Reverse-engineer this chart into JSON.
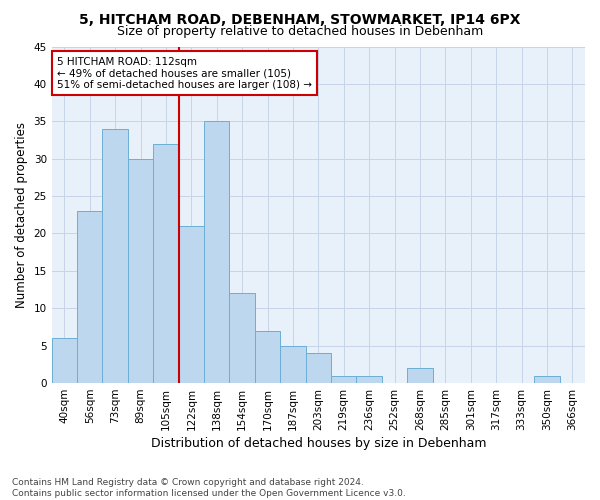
{
  "title": "5, HITCHAM ROAD, DEBENHAM, STOWMARKET, IP14 6PX",
  "subtitle": "Size of property relative to detached houses in Debenham",
  "xlabel": "Distribution of detached houses by size in Debenham",
  "ylabel": "Number of detached properties",
  "categories": [
    "40sqm",
    "56sqm",
    "73sqm",
    "89sqm",
    "105sqm",
    "122sqm",
    "138sqm",
    "154sqm",
    "170sqm",
    "187sqm",
    "203sqm",
    "219sqm",
    "236sqm",
    "252sqm",
    "268sqm",
    "285sqm",
    "301sqm",
    "317sqm",
    "333sqm",
    "350sqm",
    "366sqm"
  ],
  "values": [
    6,
    23,
    34,
    30,
    32,
    21,
    35,
    12,
    7,
    5,
    4,
    1,
    1,
    0,
    2,
    0,
    0,
    0,
    0,
    1,
    0
  ],
  "bar_color": "#bdd7ee",
  "bar_edge_color": "#6baed6",
  "bg_color": "#e8f0fa",
  "grid_color": "#c8d4e8",
  "vline_color": "#cc0000",
  "vline_xindex": 4.5,
  "annotation_text": "5 HITCHAM ROAD: 112sqm\n← 49% of detached houses are smaller (105)\n51% of semi-detached houses are larger (108) →",
  "annotation_box_color": "#ffffff",
  "annotation_box_edge": "#cc0000",
  "ylim": [
    0,
    45
  ],
  "yticks": [
    0,
    5,
    10,
    15,
    20,
    25,
    30,
    35,
    40,
    45
  ],
  "footnote": "Contains HM Land Registry data © Crown copyright and database right 2024.\nContains public sector information licensed under the Open Government Licence v3.0.",
  "title_fontsize": 10,
  "subtitle_fontsize": 9,
  "xlabel_fontsize": 9,
  "ylabel_fontsize": 8.5,
  "tick_fontsize": 7.5,
  "annotation_fontsize": 7.5,
  "footnote_fontsize": 6.5
}
